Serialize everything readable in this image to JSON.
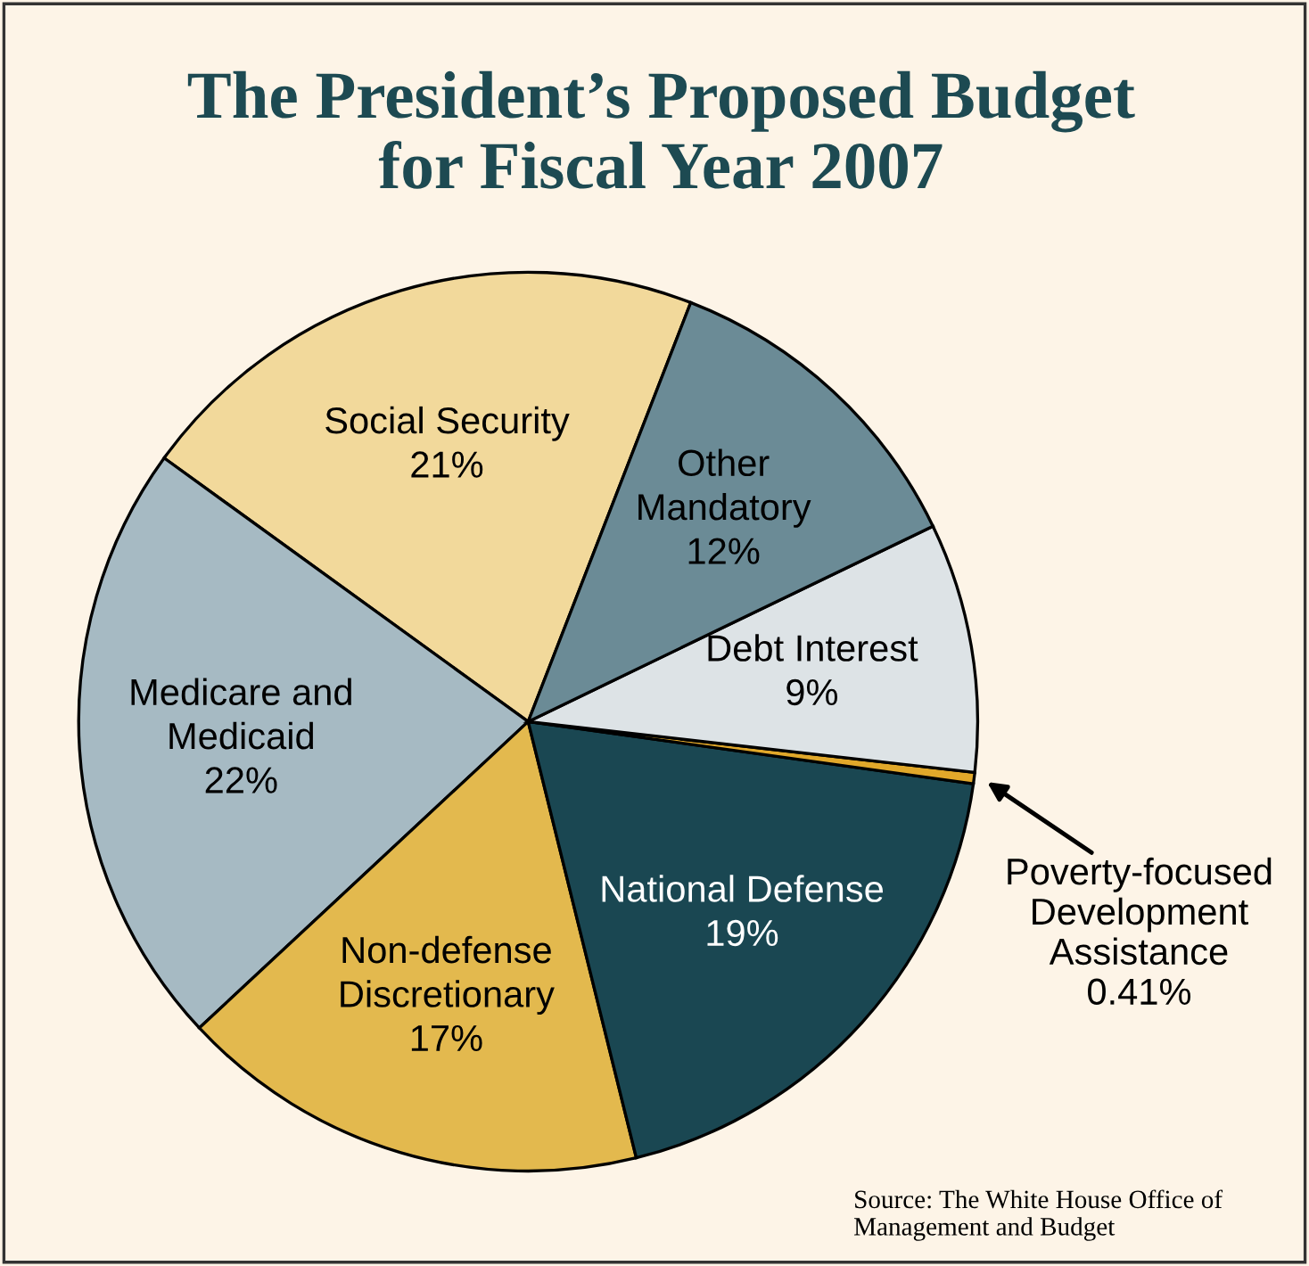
{
  "chart_data": {
    "type": "pie",
    "title": "The President’s Proposed Budget\nfor Fiscal Year 2007",
    "categories": [
      "Social Security",
      "Medicare and\nMedicaid",
      "Non-defense\nDiscretionary",
      "National Defense",
      "Poverty-focused\nDevelopment\nAssistance",
      "Debt Interest",
      "Other\nMandatory"
    ],
    "values": [
      21,
      22,
      17,
      19,
      0.41,
      9,
      12
    ],
    "value_labels": [
      "21%",
      "22%",
      "17%",
      "19%",
      "0.41%",
      "9%",
      "12%"
    ],
    "colors": [
      "#f2d99b",
      "#a6bac3",
      "#e3b94e",
      "#1a4752",
      "#e1a82a",
      "#dde3e6",
      "#6b8b96"
    ],
    "annotations": [
      "Source: The White House Office of\nManagement and Budget"
    ]
  }
}
